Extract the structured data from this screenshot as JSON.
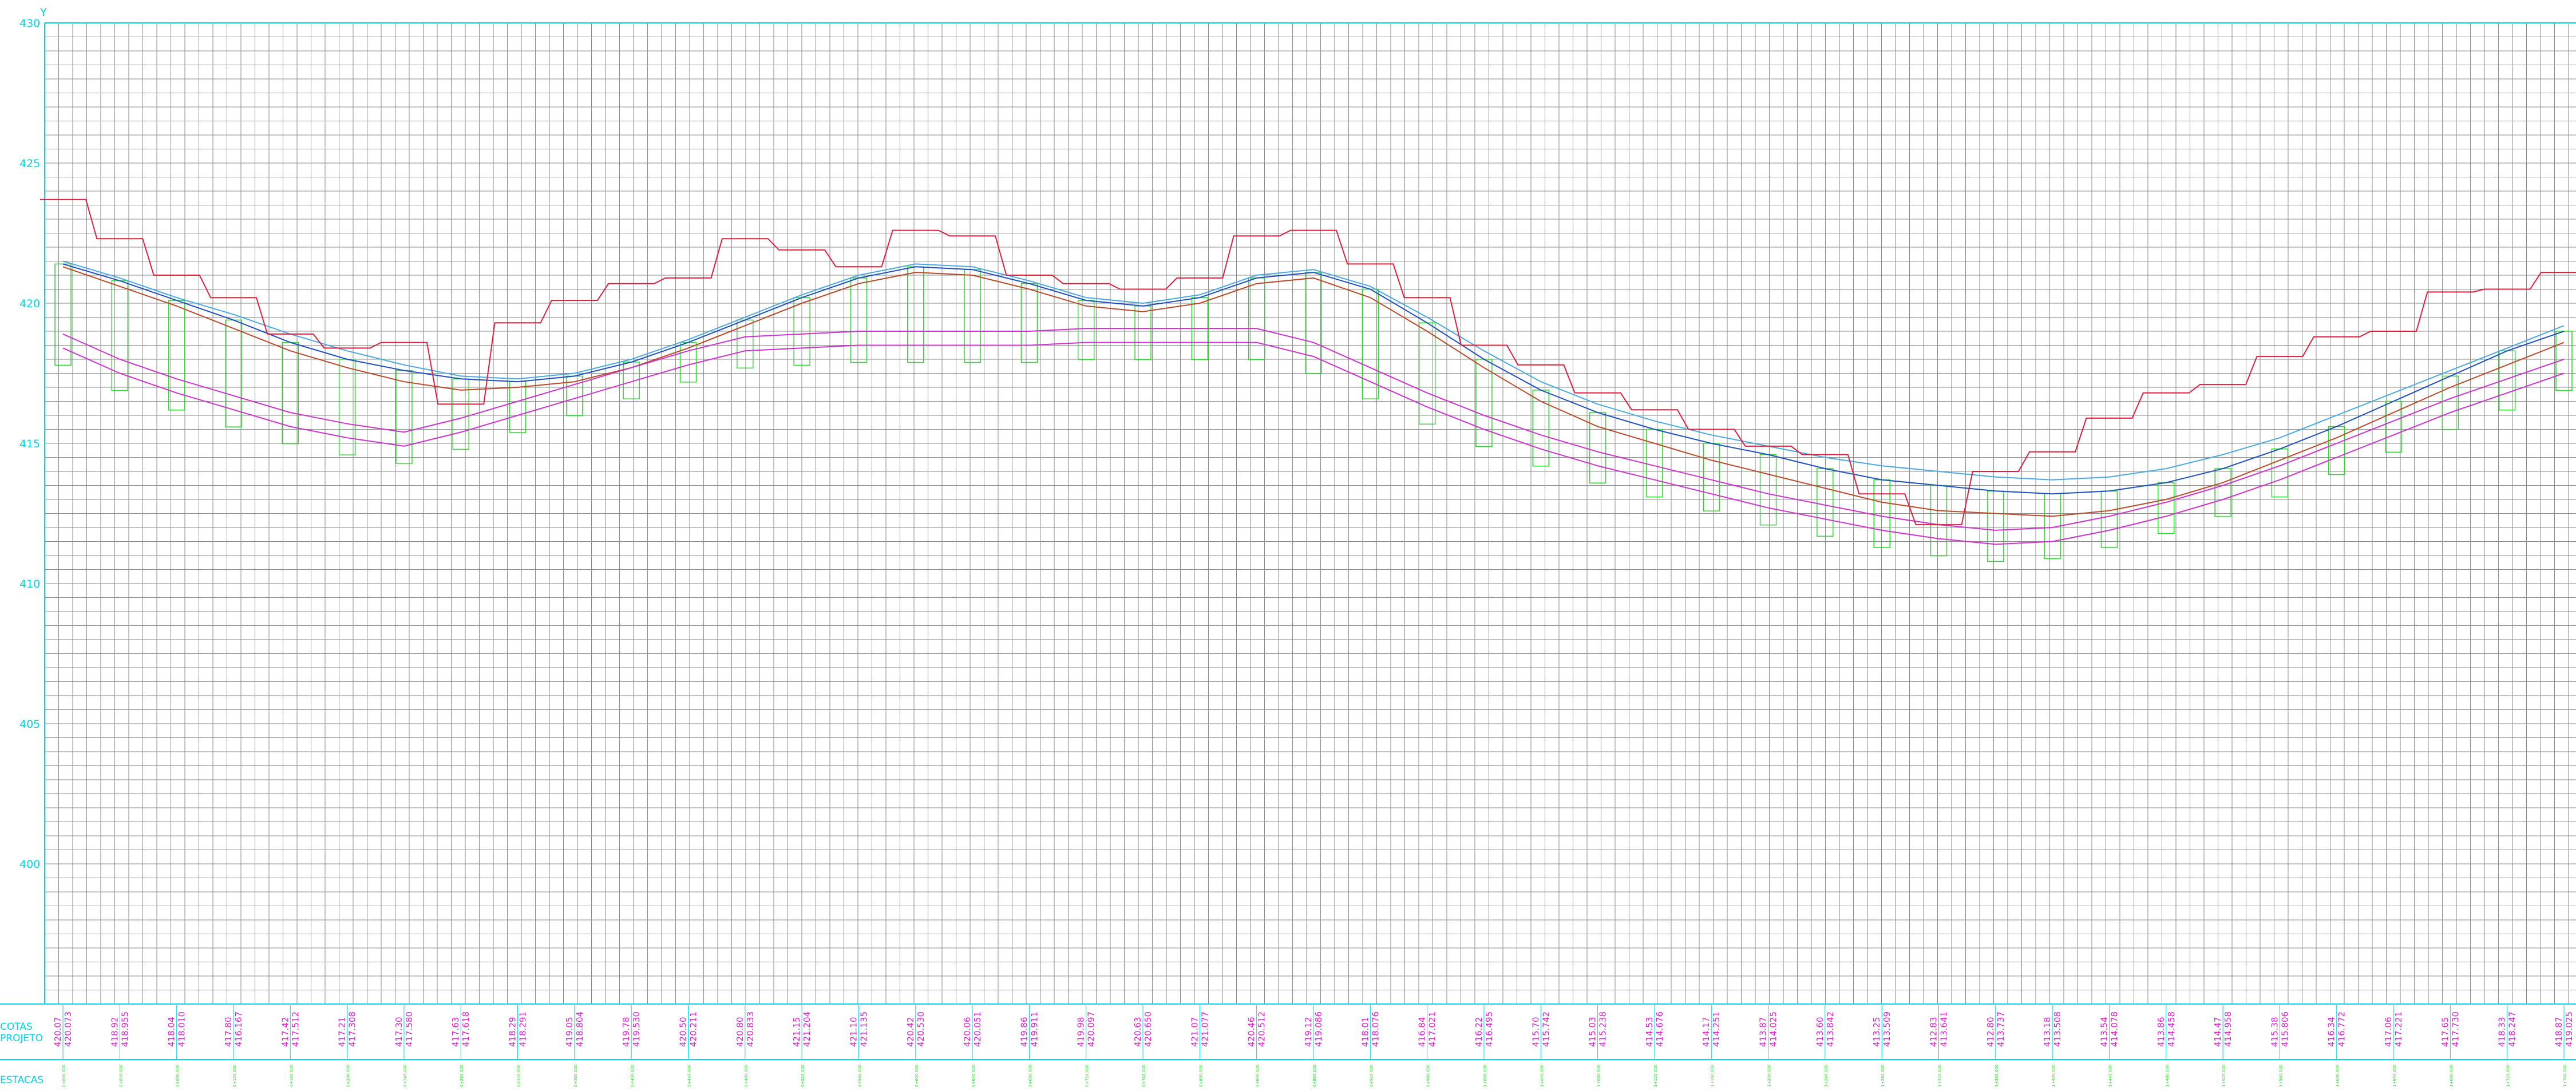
{
  "chart_data": {
    "type": "line",
    "title": "",
    "y_axis_top_label": "Y",
    "ylim": [
      395,
      430
    ],
    "ytick_labels": [
      "430",
      "425",
      "420",
      "415",
      "410",
      "405",
      "400"
    ],
    "row_labels": {
      "cota": "COTAS",
      "projeto": "PROJETO",
      "estacas": "ESTACAS"
    },
    "x_positions": [
      0,
      7,
      14,
      21,
      28,
      35,
      42,
      49,
      56,
      63,
      70,
      77,
      84,
      91,
      98,
      105,
      112,
      119,
      126,
      133,
      140,
      147,
      154,
      161,
      168,
      175,
      182,
      189,
      196,
      203,
      210,
      217,
      224,
      231,
      238,
      245,
      252,
      259,
      266,
      273,
      280,
      287,
      294,
      301,
      308
    ],
    "series": [
      {
        "role": "terrain",
        "color": "#1f4fbf",
        "values": [
          421.4,
          420.8,
          420.1,
          419.4,
          418.6,
          418.0,
          417.6,
          417.3,
          417.2,
          417.4,
          417.9,
          418.6,
          419.4,
          420.2,
          420.9,
          421.3,
          421.2,
          420.7,
          420.1,
          419.9,
          420.2,
          420.9,
          421.1,
          420.5,
          419.3,
          418.0,
          416.9,
          416.1,
          415.5,
          415.0,
          414.6,
          414.1,
          413.7,
          413.5,
          413.3,
          413.2,
          413.3,
          413.6,
          414.1,
          414.8,
          415.6,
          416.5,
          417.4,
          418.3,
          419.0
        ]
      },
      {
        "role": "ground-line",
        "color": "#4aa9e0",
        "values": [
          421.5,
          420.9,
          420.2,
          419.6,
          418.9,
          418.3,
          417.8,
          417.4,
          417.3,
          417.5,
          418.0,
          418.7,
          419.5,
          420.3,
          421.0,
          421.4,
          421.3,
          420.8,
          420.2,
          420.0,
          420.3,
          421.0,
          421.2,
          420.6,
          419.5,
          418.3,
          417.2,
          416.4,
          415.8,
          415.3,
          414.9,
          414.5,
          414.2,
          414.0,
          413.8,
          413.7,
          413.8,
          414.1,
          414.6,
          415.2,
          416.0,
          416.8,
          417.6,
          418.4,
          419.2
        ]
      },
      {
        "role": "surface-profile",
        "color": "#b84a2a",
        "values": [
          421.3,
          420.6,
          419.9,
          419.1,
          418.3,
          417.7,
          417.2,
          416.9,
          417.0,
          417.2,
          417.7,
          418.4,
          419.2,
          420.0,
          420.7,
          421.1,
          421.0,
          420.5,
          419.9,
          419.7,
          420.0,
          420.7,
          420.9,
          420.2,
          419.0,
          417.7,
          416.5,
          415.6,
          415.0,
          414.4,
          413.9,
          413.4,
          412.9,
          412.6,
          412.5,
          412.4,
          412.6,
          413.0,
          413.6,
          414.4,
          415.2,
          416.1,
          417.0,
          417.8,
          418.6
        ]
      },
      {
        "role": "pipe-top",
        "color": "#cc33cc",
        "values": [
          418.9,
          418.0,
          417.3,
          416.7,
          416.1,
          415.7,
          415.4,
          415.9,
          416.5,
          417.1,
          417.7,
          418.3,
          418.8,
          418.9,
          419.0,
          419.0,
          419.0,
          419.0,
          419.1,
          419.1,
          419.1,
          419.1,
          418.6,
          417.7,
          416.8,
          416.0,
          415.3,
          414.7,
          414.2,
          413.7,
          413.2,
          412.8,
          412.4,
          412.1,
          411.9,
          412.0,
          412.4,
          412.9,
          413.5,
          414.2,
          415.0,
          415.8,
          416.6,
          417.3,
          418.0
        ]
      },
      {
        "role": "pipe-invert",
        "color": "#cc33cc",
        "values": [
          418.4,
          417.5,
          416.8,
          416.2,
          415.6,
          415.2,
          414.9,
          415.4,
          416.0,
          416.6,
          417.2,
          417.8,
          418.3,
          418.4,
          418.5,
          418.5,
          418.5,
          418.5,
          418.6,
          418.6,
          418.6,
          418.6,
          418.1,
          417.2,
          416.3,
          415.5,
          414.8,
          414.2,
          413.7,
          413.2,
          412.7,
          412.3,
          411.9,
          411.6,
          411.4,
          411.5,
          411.9,
          412.4,
          413.0,
          413.7,
          414.5,
          415.3,
          416.1,
          416.8,
          417.5
        ]
      },
      {
        "role": "elevation-labels",
        "color": "#e01f3d",
        "values": [
          423.7,
          422.3,
          421.0,
          420.2,
          418.9,
          418.4,
          418.6,
          416.4,
          419.3,
          420.1,
          420.7,
          420.9,
          422.3,
          421.9,
          421.3,
          422.6,
          422.4,
          421.0,
          420.7,
          420.5,
          420.9,
          422.4,
          422.6,
          421.4,
          420.2,
          418.5,
          417.8,
          416.8,
          416.2,
          415.5,
          414.9,
          414.6,
          413.2,
          412.1,
          414.0,
          414.7,
          415.9,
          416.8,
          417.1,
          418.1,
          418.8,
          419.0,
          420.4,
          420.5,
          421.1
        ]
      }
    ],
    "stations": [
      {
        "cota": "420.07",
        "proj": "420.073",
        "estaca": "0+000,000"
      },
      {
        "cota": "418.92",
        "proj": "418.955",
        "estaca": "0+040,000"
      },
      {
        "cota": "418.04",
        "proj": "418.010",
        "estaca": "0+080,000"
      },
      {
        "cota": "417.80",
        "proj": "416.167",
        "estaca": "0+120,000"
      },
      {
        "cota": "417.42",
        "proj": "417.512",
        "estaca": "0+160,000"
      },
      {
        "cota": "417.21",
        "proj": "417.308",
        "estaca": "0+200,000"
      },
      {
        "cota": "417.30",
        "proj": "417.580",
        "estaca": "0+240,000"
      },
      {
        "cota": "417.63",
        "proj": "417.618",
        "estaca": "0+280,000"
      },
      {
        "cota": "418.29",
        "proj": "418.291",
        "estaca": "0+320,000"
      },
      {
        "cota": "419.05",
        "proj": "418.804",
        "estaca": "0+360,000"
      },
      {
        "cota": "419.78",
        "proj": "419.530",
        "estaca": "0+400,000"
      },
      {
        "cota": "420.50",
        "proj": "420.211",
        "estaca": "0+440,000"
      },
      {
        "cota": "420.80",
        "proj": "420.833",
        "estaca": "0+480,000"
      },
      {
        "cota": "421.15",
        "proj": "421.204",
        "estaca": "0+520,000"
      },
      {
        "cota": "421.10",
        "proj": "421.135",
        "estaca": "0+560,000"
      },
      {
        "cota": "420.42",
        "proj": "420.530",
        "estaca": "0+600,000"
      },
      {
        "cota": "420.06",
        "proj": "420.051",
        "estaca": "0+640,000"
      },
      {
        "cota": "419.86",
        "proj": "419.911",
        "estaca": "0+680,000"
      },
      {
        "cota": "419.98",
        "proj": "420.097",
        "estaca": "0+720,000"
      },
      {
        "cota": "420.63",
        "proj": "420.650",
        "estaca": "0+760,000"
      },
      {
        "cota": "421.07",
        "proj": "421.077",
        "estaca": "0+800,000"
      },
      {
        "cota": "420.46",
        "proj": "420.512",
        "estaca": "0+840,000"
      },
      {
        "cota": "419.12",
        "proj": "419.086",
        "estaca": "0+880,000"
      },
      {
        "cota": "418.01",
        "proj": "418.076",
        "estaca": "0+920,000"
      },
      {
        "cota": "416.84",
        "proj": "417.021",
        "estaca": "0+960,000"
      },
      {
        "cota": "416.22",
        "proj": "416.495",
        "estaca": "1+000,000"
      },
      {
        "cota": "415.70",
        "proj": "415.742",
        "estaca": "1+040,000"
      },
      {
        "cota": "415.03",
        "proj": "415.238",
        "estaca": "1+080,000"
      },
      {
        "cota": "414.53",
        "proj": "414.676",
        "estaca": "1+120,000"
      },
      {
        "cota": "414.17",
        "proj": "414.251",
        "estaca": "1+160,000"
      },
      {
        "cota": "413.87",
        "proj": "414.025",
        "estaca": "1+200,000"
      },
      {
        "cota": "413.60",
        "proj": "413.842",
        "estaca": "1+240,000"
      },
      {
        "cota": "413.25",
        "proj": "413.509",
        "estaca": "1+280,000"
      },
      {
        "cota": "412.83",
        "proj": "413.641",
        "estaca": "1+320,000"
      },
      {
        "cota": "412.80",
        "proj": "413.737",
        "estaca": "1+360,000"
      },
      {
        "cota": "413.18",
        "proj": "413.508",
        "estaca": "1+400,000"
      },
      {
        "cota": "413.54",
        "proj": "414.078",
        "estaca": "1+440,000"
      },
      {
        "cota": "413.86",
        "proj": "414.458",
        "estaca": "1+480,000"
      },
      {
        "cota": "414.47",
        "proj": "414.958",
        "estaca": "1+520,000"
      },
      {
        "cota": "415.38",
        "proj": "415.806",
        "estaca": "1+560,000"
      },
      {
        "cota": "416.34",
        "proj": "416.772",
        "estaca": "1+600,000"
      },
      {
        "cota": "417.06",
        "proj": "417.221",
        "estaca": "1+640,000"
      },
      {
        "cota": "417.65",
        "proj": "417.730",
        "estaca": "1+680,000"
      },
      {
        "cota": "418.33",
        "proj": "418.247",
        "estaca": "1+720,000"
      },
      {
        "cota": "418.87",
        "proj": "419.025",
        "estaca": "1+760,000"
      }
    ],
    "grid": true,
    "colors": {
      "background": "#ffffff",
      "grid": "#808080",
      "frame": "#00d7e6",
      "station_text": "#e01fd0",
      "estaca_text": "#2dd82d"
    }
  }
}
